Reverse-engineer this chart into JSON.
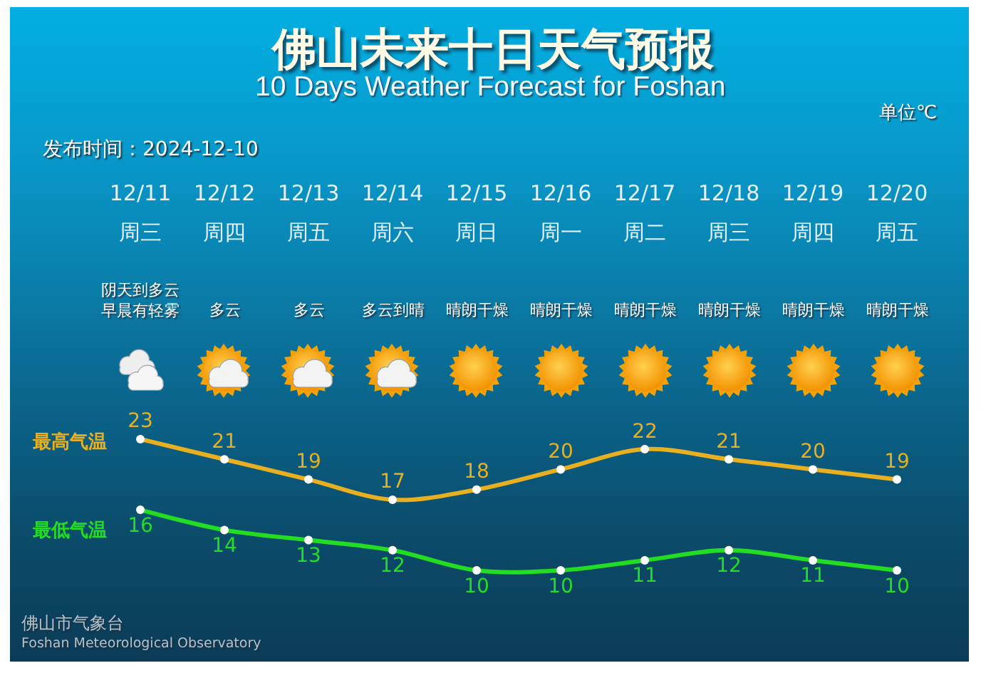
{
  "chart_data": {
    "type": "line",
    "title": "佛山未来十日天气预报",
    "subtitle": "10 Days Weather Forecast for Foshan",
    "categories": [
      "12/11\n周三",
      "12/12\n周四",
      "12/13\n周五",
      "12/14\n周六",
      "12/15\n周日",
      "12/16\n周一",
      "12/17\n周二",
      "12/18\n周三",
      "12/19\n周四",
      "12/20\n周五"
    ],
    "series": [
      {
        "name": "最高气温",
        "color": "#e8b020",
        "values": [
          23,
          21,
          19,
          17,
          18,
          20,
          22,
          21,
          20,
          19
        ]
      },
      {
        "name": "最低气温",
        "color": "#22dd22",
        "values": [
          16,
          14,
          13,
          12,
          10,
          10,
          11,
          12,
          11,
          10
        ]
      }
    ],
    "data_labels": true,
    "marker": "circle",
    "line_style": "solid",
    "tick_labels": "x",
    "annotations": [
      "单位℃",
      "发布时间：2024-12-10",
      "阴天到多云早晨有轻雾",
      "多云",
      "多云",
      "多云到晴",
      "晴朗干燥",
      "晴朗干燥",
      "晴朗干燥",
      "晴朗干燥",
      "晴朗干燥",
      "晴朗干燥",
      "佛山市气象台",
      "Foshan Meteorological Observatory"
    ]
  }
}
